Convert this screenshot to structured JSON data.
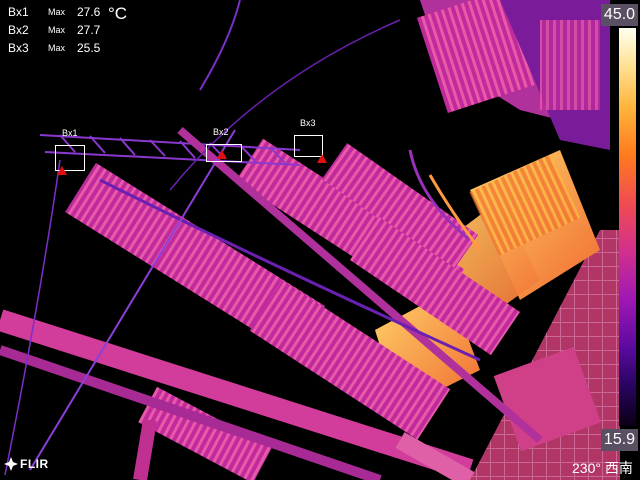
{
  "readouts": [
    {
      "name": "Bx1",
      "max_label": "Max",
      "value": "27.6"
    },
    {
      "name": "Bx2",
      "max_label": "Max",
      "value": "27.7"
    },
    {
      "name": "Bx3",
      "max_label": "Max",
      "value": "25.5"
    }
  ],
  "unit": "°C",
  "boxes": [
    {
      "label": "Bx1"
    },
    {
      "label": "Bx2"
    },
    {
      "label": "Bx3"
    }
  ],
  "scale": {
    "max": "45.0",
    "min": "15.9"
  },
  "brand": "FLIR",
  "compass": "230° 西南",
  "colors": {
    "palette": "iron",
    "marker": "#e01010",
    "scale_label_bg": "#5a4f63"
  }
}
